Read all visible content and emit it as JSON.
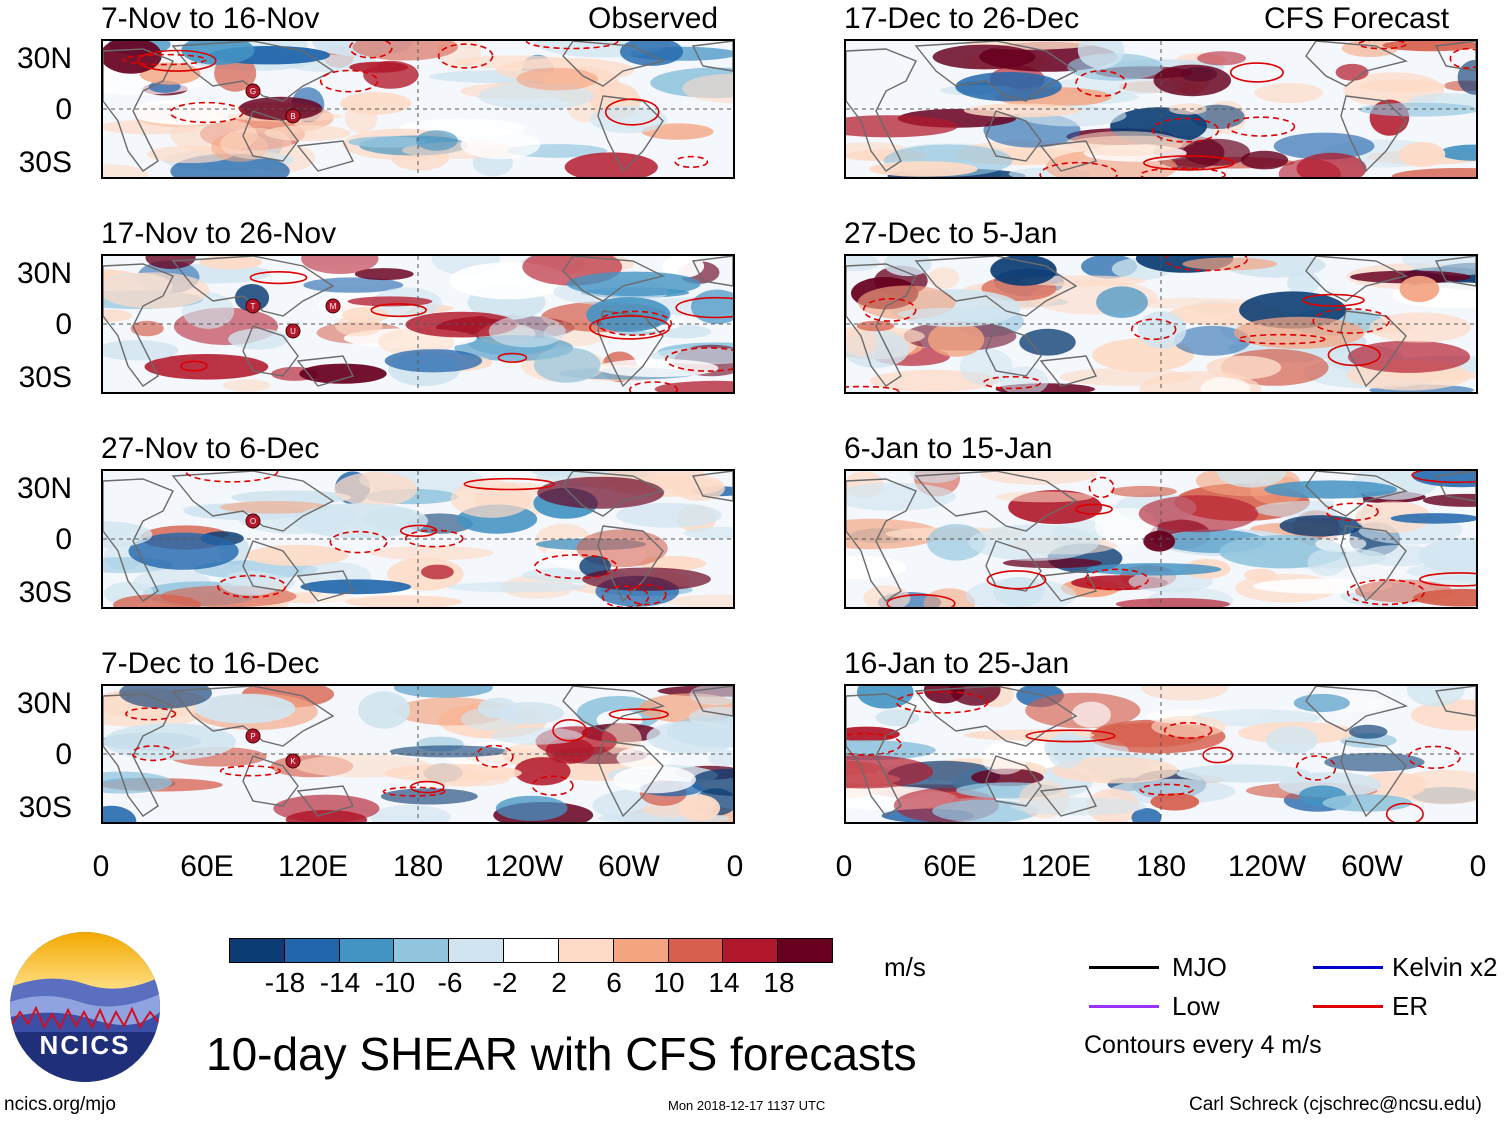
{
  "header": {
    "observed_label": "Observed",
    "forecast_label": "CFS Forecast"
  },
  "left_panels": [
    {
      "title": "7-Nov to 16-Nov"
    },
    {
      "title": "17-Nov to 26-Nov"
    },
    {
      "title": "27-Nov to 6-Dec"
    },
    {
      "title": "7-Dec to 16-Dec"
    }
  ],
  "right_panels": [
    {
      "title": "17-Dec to 26-Dec"
    },
    {
      "title": "27-Dec to 5-Jan"
    },
    {
      "title": "6-Jan to 15-Jan"
    },
    {
      "title": "16-Jan to 25-Jan"
    }
  ],
  "y_axis_labels": [
    "30N",
    "0",
    "30S"
  ],
  "x_axis_labels": [
    "0",
    "60E",
    "120E",
    "180",
    "120W",
    "60W",
    "0"
  ],
  "storm_markers": [
    {
      "panel": "17-Nov to 26-Nov",
      "labels": [
        "T",
        "U",
        "M"
      ]
    },
    {
      "panel": "7-Nov to 16-Nov",
      "labels": [
        "G",
        "B"
      ]
    },
    {
      "panel": "27-Nov to 6-Dec",
      "labels": [
        "O"
      ]
    },
    {
      "panel": "7-Dec to 16-Dec",
      "labels": [
        "P",
        "K"
      ]
    }
  ],
  "colorbar": {
    "colors": [
      "#0b3c73",
      "#2166ac",
      "#4393c3",
      "#92c5de",
      "#d1e5f0",
      "#ffffff",
      "#fddbc7",
      "#f4a582",
      "#d6604d",
      "#b2182b",
      "#67001f"
    ],
    "ticks": [
      "-18",
      "-14",
      "-10",
      "-6",
      "-2",
      "2",
      "6",
      "10",
      "14",
      "18"
    ],
    "units": "m/s"
  },
  "legend": {
    "items": [
      {
        "label": "MJO",
        "color": "#000000"
      },
      {
        "label": "Kelvin x2",
        "color": "#0000cc"
      },
      {
        "label": "Low",
        "color": "#9933ff"
      },
      {
        "label": "ER",
        "color": "#dd0000"
      }
    ],
    "contour_note": "Contours every 4 m/s"
  },
  "logo": {
    "text": "NCICS"
  },
  "main_title": "10-day SHEAR with CFS forecasts",
  "footer": {
    "left": "ncics.org/mjo",
    "center": "Mon 2018-12-17 1137 UTC",
    "right": "Carl Schreck (cjschrec@ncsu.edu)"
  }
}
